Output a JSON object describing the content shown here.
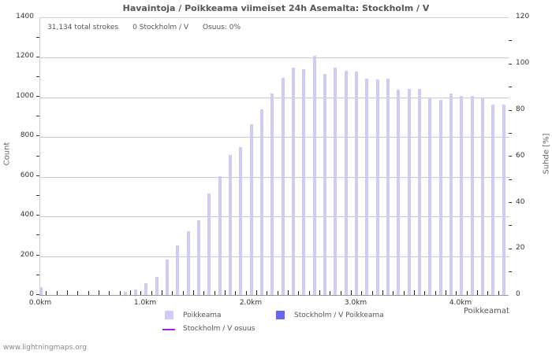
{
  "title": "Havaintoja / Poikkeama viimeiset 24h Asemalta: Stockholm / V",
  "info": {
    "total_strokes": "31,134 total strokes",
    "station_strokes": "0 Stockholm / V",
    "share": "Osuus: 0%"
  },
  "axes": {
    "left_title": "Count",
    "right_title": "Suhde [%]",
    "x_title": "Poikkeamat",
    "left_ticks": [
      "0",
      "200",
      "400",
      "600",
      "800",
      "1000",
      "1200",
      "1400"
    ],
    "right_ticks": [
      "0",
      "20",
      "40",
      "60",
      "80",
      "100",
      "120"
    ],
    "x_ticks": [
      "0.0km",
      "1.0km",
      "2.0km",
      "3.0km",
      "4.0km"
    ]
  },
  "legend": {
    "poikkeama": "Poikkeama",
    "station_poikkeama": "Stockholm / V Poikkeama",
    "station_share": "Stockholm / V osuus"
  },
  "colors": {
    "bar_all": "#ccccf5",
    "bar_station": "#6666ee",
    "share_line": "#a020f0"
  },
  "footer": "www.lightningmaps.org",
  "chart_data": {
    "type": "bar",
    "title": "Havaintoja / Poikkeama viimeiset 24h Asemalta: Stockholm / V",
    "xlabel": "Poikkeamat",
    "ylabel": "Count",
    "y2label": "Suhde [%]",
    "ylim": [
      0,
      1400
    ],
    "y2lim": [
      0,
      120
    ],
    "x_tick_labels": [
      "0.0km",
      "1.0km",
      "2.0km",
      "3.0km",
      "4.0km"
    ],
    "bin_width_km": 0.1,
    "x": [
      0.0,
      0.1,
      0.2,
      0.3,
      0.4,
      0.5,
      0.6,
      0.7,
      0.8,
      0.9,
      1.0,
      1.1,
      1.2,
      1.3,
      1.4,
      1.5,
      1.6,
      1.7,
      1.8,
      1.9,
      2.0,
      2.1,
      2.2,
      2.3,
      2.4,
      2.5,
      2.6,
      2.7,
      2.8,
      2.9,
      3.0,
      3.1,
      3.2,
      3.3,
      3.4,
      3.5,
      3.6,
      3.7,
      3.8,
      3.9,
      4.0,
      4.1,
      4.2,
      4.3,
      4.4
    ],
    "series": [
      {
        "name": "Poikkeama",
        "values": [
          40,
          0,
          0,
          0,
          0,
          0,
          0,
          0,
          15,
          28,
          60,
          90,
          180,
          250,
          320,
          375,
          510,
          600,
          705,
          745,
          860,
          935,
          1015,
          1095,
          1145,
          1140,
          1205,
          1115,
          1145,
          1130,
          1125,
          1090,
          1085,
          1090,
          1035,
          1040,
          1040,
          995,
          985,
          1015,
          1005,
          1005,
          995,
          960,
          960
        ]
      },
      {
        "name": "Stockholm / V Poikkeama",
        "values": [
          0,
          0,
          0,
          0,
          0,
          0,
          0,
          0,
          0,
          0,
          0,
          0,
          0,
          0,
          0,
          0,
          0,
          0,
          0,
          0,
          0,
          0,
          0,
          0,
          0,
          0,
          0,
          0,
          0,
          0,
          0,
          0,
          0,
          0,
          0,
          0,
          0,
          0,
          0,
          0,
          0,
          0,
          0,
          0,
          0
        ]
      },
      {
        "name": "Stockholm / V osuus",
        "values": [
          0,
          0,
          0,
          0,
          0,
          0,
          0,
          0,
          0,
          0,
          0,
          0,
          0,
          0,
          0,
          0,
          0,
          0,
          0,
          0,
          0,
          0,
          0,
          0,
          0,
          0,
          0,
          0,
          0,
          0,
          0,
          0,
          0,
          0,
          0,
          0,
          0,
          0,
          0,
          0,
          0,
          0,
          0,
          0,
          0
        ]
      }
    ],
    "grid": true,
    "legend_position": "bottom"
  }
}
